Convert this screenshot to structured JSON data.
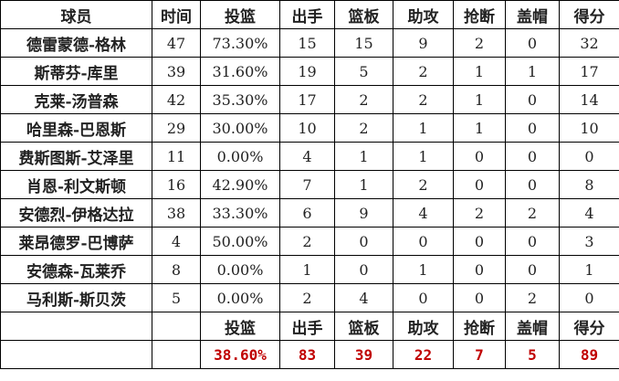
{
  "headers": [
    "球员",
    "时间",
    "投篮",
    "出手",
    "篮板",
    "助攻",
    "抢断",
    "盖帽",
    "得分"
  ],
  "rows": [
    [
      "德雷蒙德-格林",
      "47",
      "73.30%",
      "15",
      "15",
      "9",
      "2",
      "0",
      "32"
    ],
    [
      "斯蒂芬-库里",
      "39",
      "31.60%",
      "19",
      "5",
      "2",
      "1",
      "1",
      "17"
    ],
    [
      "克莱-汤普森",
      "42",
      "35.30%",
      "17",
      "2",
      "2",
      "1",
      "0",
      "14"
    ],
    [
      "哈里森-巴恩斯",
      "29",
      "30.00%",
      "10",
      "2",
      "1",
      "1",
      "0",
      "10"
    ],
    [
      "费斯图斯-艾泽里",
      "11",
      "0.00%",
      "4",
      "1",
      "1",
      "0",
      "0",
      "0"
    ],
    [
      "肖恩-利文斯顿",
      "16",
      "42.90%",
      "7",
      "1",
      "2",
      "0",
      "0",
      "8"
    ],
    [
      "安德烈-伊格达拉",
      "38",
      "33.30%",
      "6",
      "9",
      "4",
      "2",
      "2",
      "4"
    ],
    [
      "莱昂德罗-巴博萨",
      "4",
      "50.00%",
      "2",
      "0",
      "0",
      "0",
      "0",
      "3"
    ],
    [
      "安德森-瓦莱乔",
      "8",
      "0.00%",
      "1",
      "0",
      "1",
      "0",
      "0",
      "1"
    ],
    [
      "马利斯-斯贝茨",
      "5",
      "0.00%",
      "2",
      "4",
      "0",
      "0",
      "2",
      "0"
    ]
  ],
  "totals_headers": [
    "投篮",
    "出手",
    "篮板",
    "助攻",
    "抢断",
    "盖帽",
    "得分"
  ],
  "totals": [
    "38.60%",
    "83",
    "39",
    "22",
    "7",
    "5",
    "89"
  ],
  "colors": {
    "totals_text": "#c00000",
    "border": "#000000"
  }
}
